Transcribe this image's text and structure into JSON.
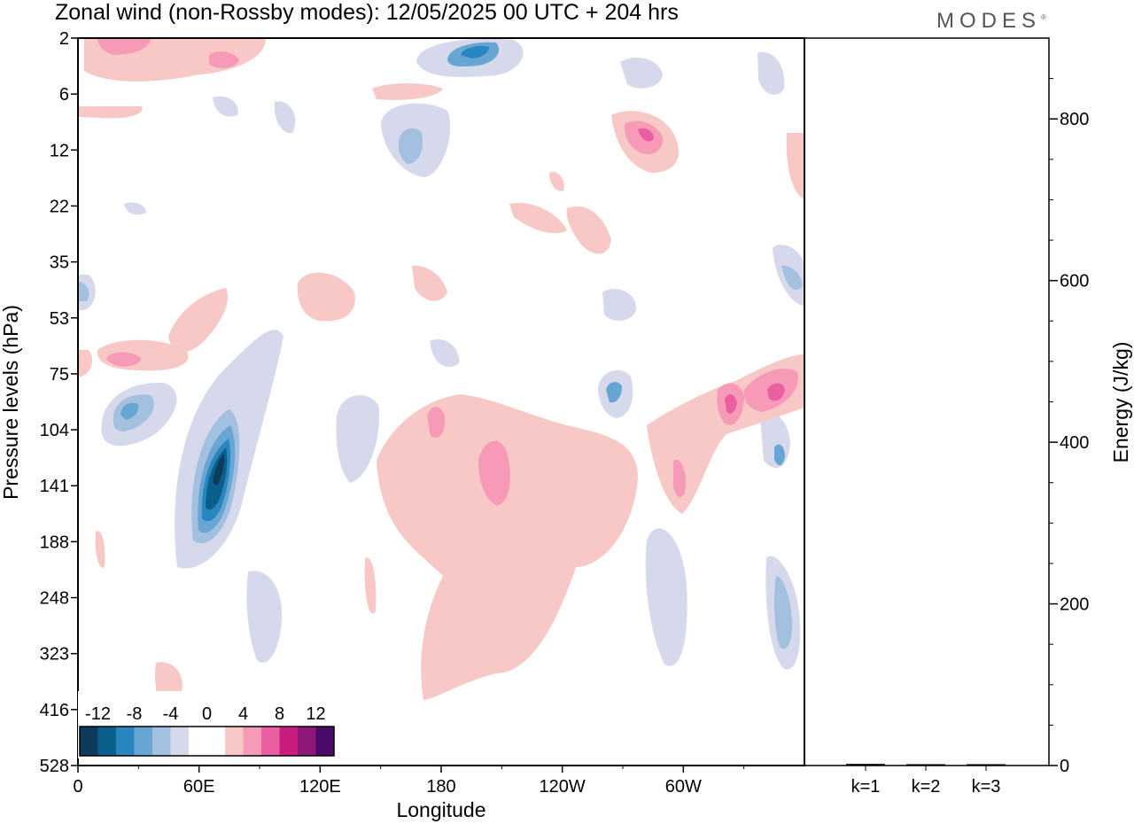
{
  "header": {
    "title": "Zonal wind (non-Rossby modes):  12/05/2025  00 UTC  + 204 hrs",
    "logo": "MODES",
    "logo_mark": "®"
  },
  "chart_data": [
    {
      "type": "heatmap",
      "title": "Zonal wind (non-Rossby modes):  12/05/2025  00 UTC  + 204 hrs",
      "xlabel": "Longitude",
      "ylabel": "Pressure levels (hPa)",
      "x_ticks": [
        "0",
        "60E",
        "120E",
        "180",
        "120W",
        "60W"
      ],
      "y_ticks": [
        "2",
        "6",
        "12",
        "22",
        "35",
        "53",
        "75",
        "104",
        "141",
        "188",
        "248",
        "323",
        "416",
        "528"
      ],
      "y_scale": "log-pressure",
      "grid": false,
      "legend": {
        "placement": "bottom-left",
        "labels": [
          "-12",
          "-8",
          "-4",
          "0",
          "4",
          "8",
          "12"
        ],
        "colors": [
          "#0d3b5c",
          "#0b5f8c",
          "#2a86c0",
          "#67a6d3",
          "#a4c0e0",
          "#d5d9eb",
          "#ffffff",
          "#ffffff",
          "#f8c8c6",
          "#f69ab7",
          "#ea5fa0",
          "#c81d7f",
          "#8e1878",
          "#4a0a6a"
        ]
      },
      "features": [
        {
          "lon": 62,
          "p": 141,
          "value": -14
        },
        {
          "lon": 22,
          "p": 98,
          "value": -6
        },
        {
          "lon": 187,
          "p": 2.8,
          "value": -7
        },
        {
          "lon": 162,
          "p": 12,
          "value": -5
        },
        {
          "lon": 268,
          "p": 92,
          "value": -5
        },
        {
          "lon": 350,
          "p": 248,
          "value": -5
        },
        {
          "lon": 355,
          "p": 38,
          "value": -4
        },
        {
          "lon": 282,
          "p": 9,
          "value": 8
        },
        {
          "lon": 325,
          "p": 97,
          "value": 8
        },
        {
          "lon": 348,
          "p": 88,
          "value": 8
        },
        {
          "lon": 208,
          "p": 141,
          "value": 5
        },
        {
          "lon": 25,
          "p": 75,
          "value": 4
        },
        {
          "lon": 12,
          "p": 2.5,
          "value": 4
        },
        {
          "lon": 70,
          "p": 3.3,
          "value": 5
        }
      ]
    },
    {
      "type": "bar",
      "categories": [
        "k=1",
        "k=2",
        "k=3"
      ],
      "values": [
        2.0,
        1.5,
        1.0
      ],
      "ylabel": "Energy (J/kg)",
      "y_ticks": [
        "0",
        "200",
        "400",
        "600",
        "800"
      ],
      "ylim": [
        0,
        900
      ]
    }
  ]
}
